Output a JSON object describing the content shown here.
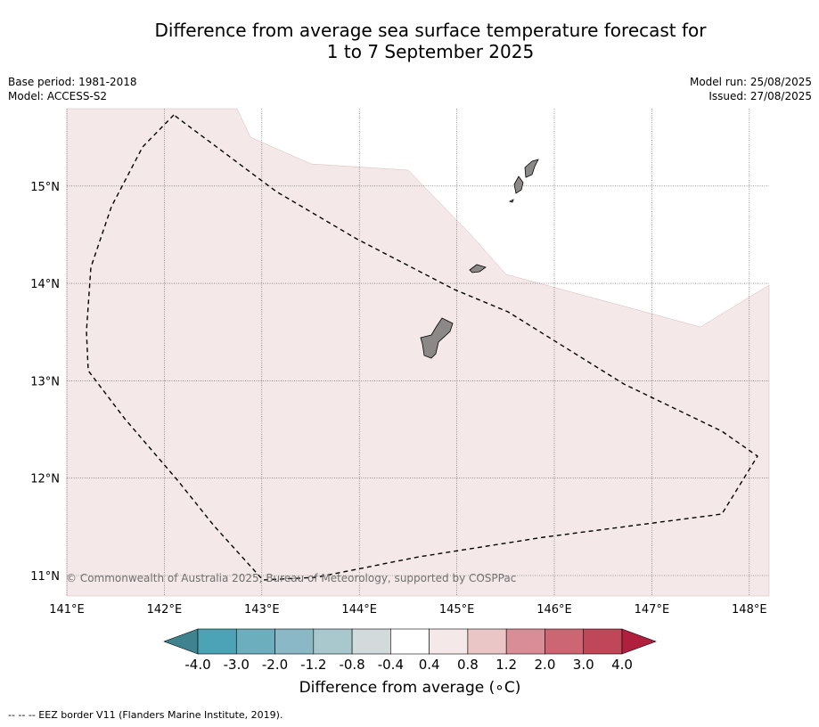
{
  "title": {
    "line1": "Difference from average sea surface temperature forecast for",
    "line2": "1 to 7 September 2025"
  },
  "meta": {
    "base_period": "Base period: 1981-2018",
    "model": "Model: ACCESS-S2",
    "model_run": "Model run: 25/08/2025",
    "issued": "Issued: 27/08/2025"
  },
  "map": {
    "lon_ticks": [
      "141°E",
      "142°E",
      "143°E",
      "144°E",
      "145°E",
      "146°E",
      "147°E",
      "148°E"
    ],
    "lat_ticks": [
      "15°N",
      "14°N",
      "13°N",
      "12°N",
      "11°N"
    ],
    "lon_values": [
      141,
      142,
      143,
      144,
      145,
      146,
      147,
      148
    ],
    "lat_values": [
      15,
      14,
      13,
      12,
      11
    ],
    "extent": {
      "lon": [
        141,
        148.2
      ],
      "lat": [
        10.8,
        15.8
      ]
    },
    "copyright": "© Commonwealth of Australia 2025, Bureau of Meteorology, supported by COSPPac",
    "anomaly_fill_color": "#f4e8e8",
    "land_color": "#8c8888",
    "islands": [
      "Guam",
      "Rota",
      "Tinian",
      "Saipan"
    ]
  },
  "colorbar": {
    "ticks": [
      "-4.0",
      "-3.0",
      "-2.0",
      "-1.2",
      "-0.8",
      "-0.4",
      "0.4",
      "0.8",
      "1.2",
      "2.0",
      "3.0",
      "4.0"
    ],
    "colors": [
      "#3f838f",
      "#4ba3b5",
      "#6caebe",
      "#8ab8c6",
      "#a8c8ce",
      "#d2dadc",
      "#ffffff",
      "#f4e8e8",
      "#eac6c6",
      "#d98d97",
      "#cb6672",
      "#c04758",
      "#b11f3e"
    ],
    "label": "Difference from average (∘C)"
  },
  "footnote": "--  --  -- EEZ border V11 (Flanders Marine Institute, 2019)."
}
